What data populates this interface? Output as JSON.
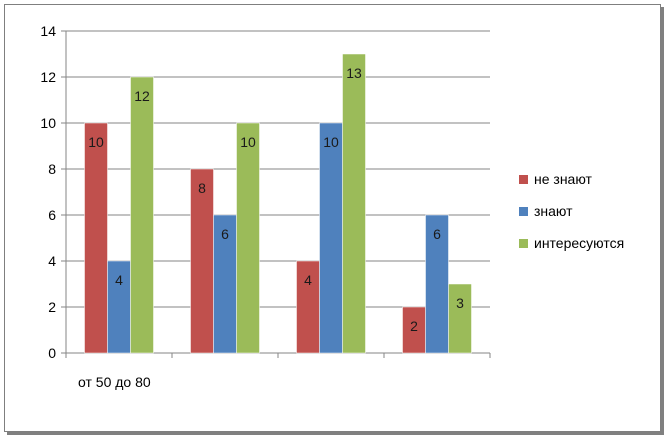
{
  "chart_data": {
    "type": "bar",
    "categories": [
      "от 50 до 80",
      "",
      "",
      ""
    ],
    "series": [
      {
        "name": "не знают",
        "values": [
          10,
          8,
          4,
          2
        ],
        "color": "#c0504d"
      },
      {
        "name": "знают",
        "values": [
          4,
          6,
          10,
          6
        ],
        "color": "#4f81bd"
      },
      {
        "name": "интересуются",
        "values": [
          12,
          10,
          13,
          3
        ],
        "color": "#9bbb59"
      }
    ],
    "ylim": [
      0,
      14
    ],
    "yticks": [
      0,
      2,
      4,
      6,
      8,
      10,
      12,
      14
    ],
    "grid": true,
    "legend": "right",
    "data_labels": true
  }
}
